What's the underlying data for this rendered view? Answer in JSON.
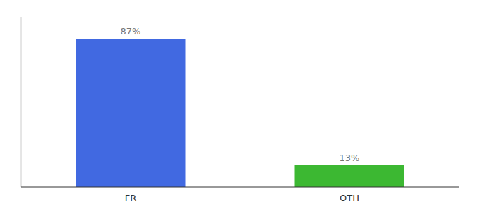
{
  "chart_data": {
    "type": "bar",
    "categories": [
      "FR",
      "OTH"
    ],
    "values": [
      87,
      13
    ],
    "value_labels": [
      "87%",
      "13%"
    ],
    "colors": [
      "#4169e1",
      "#3cb832"
    ],
    "ylim": [
      0,
      100
    ],
    "grid": false,
    "data_labels": true,
    "tick_labels": "x"
  }
}
